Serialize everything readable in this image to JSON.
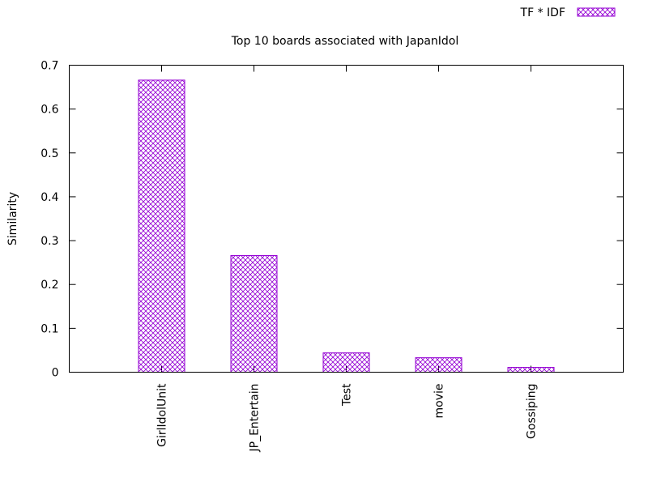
{
  "chart_data": {
    "type": "bar",
    "title": "Top 10 boards associated with JapanIdol",
    "xlabel": "",
    "ylabel": "Similarity",
    "ylim": [
      0,
      0.7
    ],
    "yticks": [
      "0",
      "0.1",
      "0.2",
      "0.3",
      "0.4",
      "0.5",
      "0.6",
      "0.7"
    ],
    "categories": [
      "GirlIdolUnit",
      "JP_Entertain",
      "Test",
      "movie",
      "Gossiping"
    ],
    "series": [
      {
        "name": "TF * IDF",
        "values": [
          0.666,
          0.266,
          0.044,
          0.033,
          0.011
        ]
      }
    ],
    "legend_position": "top-right",
    "grid": false,
    "colors": {
      "bar": "#9400d3",
      "axis": "#000000"
    }
  }
}
